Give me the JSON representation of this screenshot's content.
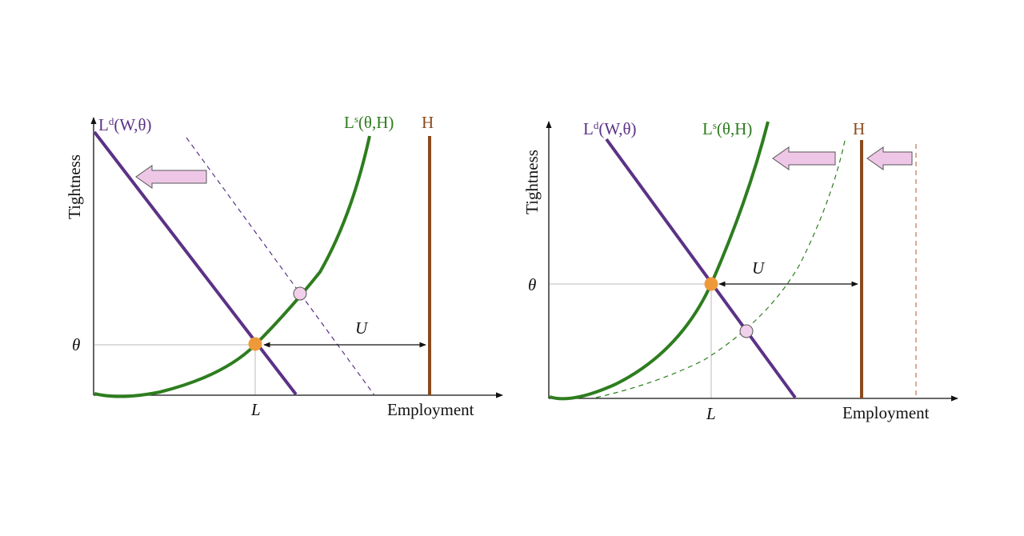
{
  "colors": {
    "labor_demand": "#5b3286",
    "labor_supply": "#2e7d1f",
    "labor_force": "#8b4a1c",
    "equilibrium_point": "#ef9a3a",
    "shifted_point": "#f0d0ea",
    "arrow_fill": "#efc7e6",
    "axis": "#111111",
    "guide": "#bbbbbb"
  },
  "left_panel": {
    "y_axis_label": "Tightness",
    "x_axis_label": "Employment",
    "demand_label_main": "L",
    "demand_label_sup": "d",
    "demand_label_rest": "(W,θ)",
    "supply_label_main": "L",
    "supply_label_sup": "s",
    "supply_label_rest": "(θ,H)",
    "labor_force_label": "H",
    "theta_tick": "θ",
    "employment_tick": "L",
    "unemployment_label": "U",
    "shift_arrow_count": 1,
    "shifted_curve": "labor demand (dashed)"
  },
  "right_panel": {
    "y_axis_label": "Tightness",
    "x_axis_label": "Employment",
    "demand_label_main": "L",
    "demand_label_sup": "d",
    "demand_label_rest": "(W,θ)",
    "supply_label_main": "L",
    "supply_label_sup": "s",
    "supply_label_rest": "(θ,H)",
    "labor_force_label": "H",
    "theta_tick": "θ",
    "employment_tick": "L",
    "unemployment_label": "U",
    "shift_arrow_count": 2,
    "shifted_curve": "labor supply and labor force (dashed)"
  }
}
